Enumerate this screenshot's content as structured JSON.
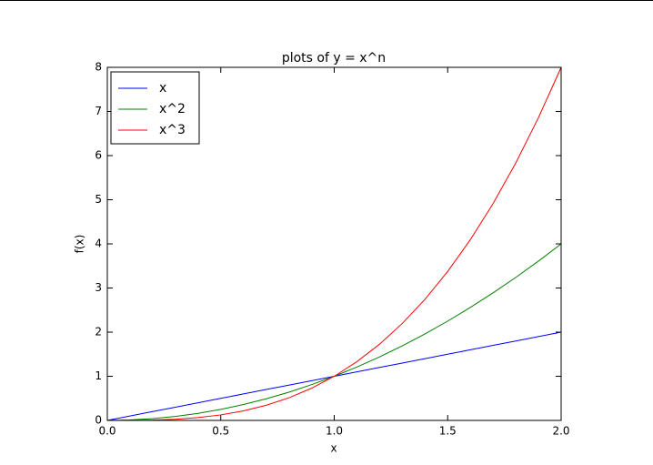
{
  "chart_data": {
    "type": "line",
    "title": "plots of y = x^n",
    "xlabel": "x",
    "ylabel": "f(x)",
    "x": [
      0,
      0.1,
      0.2,
      0.3,
      0.4,
      0.5,
      0.6,
      0.7,
      0.8,
      0.9,
      1,
      1.1,
      1.2,
      1.3,
      1.4,
      1.5,
      1.6,
      1.7,
      1.8,
      1.9,
      2
    ],
    "series": [
      {
        "name": "x",
        "color": "#0000ff",
        "values": [
          0,
          0.1,
          0.2,
          0.3,
          0.4,
          0.5,
          0.6,
          0.7,
          0.8,
          0.9,
          1,
          1.1,
          1.2,
          1.3,
          1.4,
          1.5,
          1.6,
          1.7,
          1.8,
          1.9,
          2
        ]
      },
      {
        "name": "x^2",
        "color": "#008000",
        "values": [
          0,
          0.01,
          0.04,
          0.09,
          0.16,
          0.25,
          0.36,
          0.49,
          0.64,
          0.81,
          1,
          1.21,
          1.44,
          1.69,
          1.96,
          2.25,
          2.56,
          2.89,
          3.24,
          3.61,
          4
        ]
      },
      {
        "name": "x^3",
        "color": "#ff0000",
        "values": [
          0,
          0.001,
          0.008,
          0.027,
          0.064,
          0.125,
          0.216,
          0.343,
          0.512,
          0.729,
          1,
          1.331,
          1.728,
          2.197,
          2.744,
          3.375,
          4.096,
          4.913,
          5.832,
          6.859,
          8
        ]
      }
    ],
    "xlim": [
      0,
      2
    ],
    "ylim": [
      0,
      8
    ],
    "xticks": [
      {
        "value": 0,
        "label": "0.0"
      },
      {
        "value": 0.5,
        "label": "0.5"
      },
      {
        "value": 1,
        "label": "1.0"
      },
      {
        "value": 1.5,
        "label": "1.5"
      },
      {
        "value": 2,
        "label": "2.0"
      }
    ],
    "yticks": [
      0,
      1,
      2,
      3,
      4,
      5,
      6,
      7,
      8
    ],
    "grid": false,
    "legend": "upper left"
  }
}
